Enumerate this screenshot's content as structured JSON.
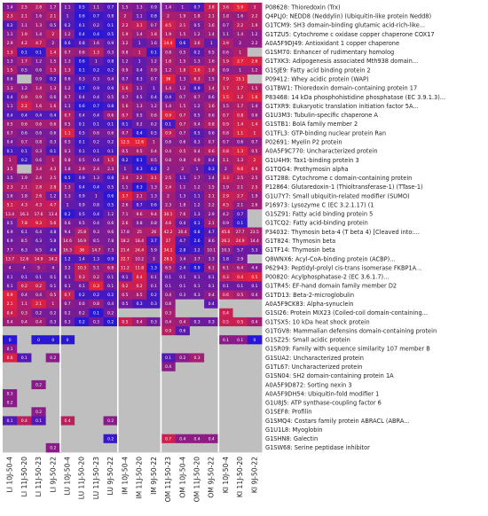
{
  "chart_data": {
    "type": "heatmap",
    "title": "",
    "xlabel": "",
    "ylabel": "",
    "missing_color": "#bfbfbf",
    "low_color": "#2a17d6",
    "mid_color": "#8a1c8a",
    "high_color": "#e6213a",
    "columns": [
      "LI 10J-50-4",
      "LI 11J-50-20",
      "LI 11J-50-23",
      "LI 9J-50-22",
      "LU 10J-50-4",
      "LU 11J-50-20",
      "LU 11J-50-23",
      "LU 9J-50-22",
      "IM 10J-50-4",
      "IM 11J-50-20",
      "IM 9J-50-22",
      "OM 11J-50-23",
      "OM 10J-50-4",
      "OM 11J-50-20",
      "OM 9J-50-22",
      "KI 10J-50-4",
      "KI 11J-50-20",
      "KI 9J-50-22"
    ],
    "rows": [
      {
        "label": "P08628: Thioredoxin (Trx)",
        "values": [
          1.4,
          2.5,
          2.8,
          1.7,
          1.1,
          0.5,
          1.1,
          0.7,
          1.5,
          1.3,
          0.9,
          1.4,
          1.0,
          0.7,
          3.8,
          3.6,
          5.9,
          3.0
        ]
      },
      {
        "label": "Q4PLJ0: NEDD8 (Neddylin) (Ubiquitin-like protein Nedd8)",
        "values": [
          2.3,
          2.1,
          1.6,
          2.1,
          1.0,
          0.6,
          0.7,
          0.8,
          2.0,
          1.1,
          0.8,
          2.0,
          1.9,
          1.8,
          2.1,
          1.8,
          1.6,
          2.2
        ]
      },
      {
        "label": "G1TCM9: SH3 domain-binding glutamic acid-rich-like...",
        "values": [
          0.2,
          1.1,
          1.3,
          0.5,
          0.2,
          0.1,
          0.2,
          0.1,
          2.2,
          3.1,
          0.7,
          4.5,
          2.1,
          0.5,
          1.6,
          0.7,
          2.2,
          1.9
        ]
      },
      {
        "label": "G1TZU5: Cytochrome c oxidase copper chaperone COX17",
        "values": [
          1.1,
          1.9,
          1.4,
          2.0,
          1.2,
          0.4,
          0.4,
          0.5,
          1.9,
          1.4,
          1.8,
          1.9,
          1.5,
          1.2,
          1.4,
          1.1,
          1.4,
          1.2
        ]
      },
      {
        "label": "A0A5F9DJ49: Antioxidant 1 copper chaperone",
        "values": [
          2.9,
          4.2,
          4.7,
          2.0,
          0.6,
          0.8,
          1.6,
          0.9,
          3.2,
          1.0,
          1.6,
          14.4,
          0.6,
          3.6,
          1.0,
          3.9,
          2.0,
          2.2
        ]
      },
      {
        "label": "G1SM70: Enhancer of rudimentary homolog",
        "values": [
          1.3,
          0.1,
          0.1,
          1.4,
          0.7,
          0.6,
          1.3,
          0.3,
          0.8,
          1.0,
          0.1,
          0.8,
          0.5,
          0.2,
          0.5,
          0.6,
          1.0,
          null
        ]
      },
      {
        "label": "G1TXK3: Adipogenesis associated Mth938 domain...",
        "values": [
          1.3,
          1.7,
          1.2,
          1.5,
          1.3,
          0.6,
          1.0,
          0.8,
          1.2,
          1.0,
          1.2,
          1.8,
          1.5,
          1.3,
          1.6,
          1.9,
          2.7,
          2.6
        ]
      },
      {
        "label": "G1SJE9: Fatty acid binding protein 2",
        "values": [
          1.5,
          0.5,
          0.6,
          1.5,
          1.3,
          0.1,
          0.2,
          0.2,
          0.9,
          0.4,
          0.9,
          1.2,
          1.8,
          3.6,
          1.8,
          0.9,
          1.0,
          1.2
        ]
      },
      {
        "label": "P09412: Whey acidic protein (WAP)",
        "values": [
          0.6,
          null,
          0.9,
          0.2,
          0.6,
          0.3,
          0.3,
          0.4,
          0.7,
          0.3,
          0.7,
          36.0,
          1.3,
          6.3,
          1.5,
          7.9,
          15.1,
          null
        ]
      },
      {
        "label": "G1TBW1: Thioredoxin domain-containing protein 17",
        "values": [
          1.3,
          1.2,
          1.4,
          1.3,
          1.2,
          0.7,
          0.9,
          0.9,
          1.6,
          1.1,
          1.0,
          1.4,
          1.2,
          0.9,
          1.4,
          1.7,
          1.7,
          1.5
        ]
      },
      {
        "label": "P83468: 14 kDa phosphohistidine phosphatase (EC 3.9.1.3)...",
        "values": [
          0.4,
          0.9,
          0.9,
          0.6,
          0.7,
          0.4,
          0.4,
          0.5,
          0.7,
          0.5,
          0.4,
          0.4,
          0.7,
          0.7,
          0.6,
          1.5,
          1.2,
          1.6
        ]
      },
      {
        "label": "G1TXR9: Eukaryotic translation initiation factor 5A...",
        "values": [
          1.1,
          2.2,
          1.6,
          1.6,
          1.1,
          0.6,
          0.7,
          0.8,
          1.6,
          1.3,
          1.2,
          1.4,
          1.5,
          1.2,
          1.6,
          1.5,
          1.7,
          1.4
        ]
      },
      {
        "label": "G1U3M3: Tubulin-specific chaperone A",
        "values": [
          0.4,
          0.4,
          0.4,
          0.4,
          0.7,
          0.4,
          0.4,
          0.6,
          0.7,
          0.5,
          0.6,
          0.9,
          0.7,
          0.5,
          0.6,
          0.7,
          0.8,
          0.6
        ]
      },
      {
        "label": "G1STB1: BolA family member 2",
        "values": [
          0.5,
          0.6,
          0.6,
          0.6,
          0.5,
          0.1,
          0.1,
          0.1,
          0.1,
          0.2,
          0.2,
          0.1,
          0.7,
          0.4,
          0.8,
          0.9,
          1.4,
          1.4
        ]
      },
      {
        "label": "G1TFL3: GTP-binding nuclear protein Ran",
        "values": [
          0.7,
          0.6,
          0.6,
          0.6,
          1.1,
          0.5,
          0.6,
          0.6,
          0.7,
          0.4,
          0.5,
          0.9,
          0.7,
          0.5,
          0.6,
          0.8,
          1.1,
          1.0
        ]
      },
      {
        "label": "P02691: Myelin P2 protein",
        "values": [
          0.4,
          0.7,
          0.8,
          0.3,
          0.5,
          0.1,
          0.2,
          0.2,
          12.5,
          12.6,
          1.0,
          0.6,
          0.6,
          0.3,
          0.7,
          0.7,
          0.6,
          0.7
        ]
      },
      {
        "label": "A0A5F9C770: Uncharacterized protein",
        "values": [
          0.1,
          0.1,
          0.3,
          0.1,
          0.3,
          0.1,
          0.1,
          0.1,
          0.5,
          0.5,
          0.4,
          0.4,
          0.5,
          0.4,
          0.6,
          0.8,
          1.3,
          0.5
        ]
      },
      {
        "label": "G1U4H9: Tax1-binding protein 3",
        "values": [
          1.0,
          0.2,
          0.6,
          1.0,
          0.8,
          0.5,
          0.4,
          1.5,
          0.2,
          0.1,
          0.5,
          0.8,
          0.8,
          0.9,
          0.4,
          1.1,
          1.3,
          2.0
        ]
      },
      {
        "label": "G1TQG4: Prothymosin alpha",
        "values": [
          3.5,
          null,
          3.4,
          4.3,
          1.8,
          2.9,
          2.4,
          2.3,
          1.0,
          0.3,
          0.2,
          2.0,
          2.0,
          1.0,
          0.3,
          2.0,
          9.6,
          6.9
        ]
      },
      {
        "label": "G1T288: Cytochrome c domain-containing protein",
        "values": [
          1.5,
          1.9,
          2.4,
          2.5,
          0.5,
          0.9,
          1.3,
          0.8,
          2.4,
          2.2,
          3.1,
          2.5,
          1.1,
          1.7,
          1.4,
          3.3,
          2.5,
          2.5
        ]
      },
      {
        "label": "P12864: Glutaredoxin-1 (Thioltransferase-1) (TTase-1)",
        "values": [
          2.3,
          2.1,
          2.8,
          2.8,
          1.3,
          0.4,
          0.4,
          0.5,
          1.1,
          0.3,
          1.3,
          2.4,
          1.1,
          1.2,
          1.5,
          1.9,
          2.1,
          2.5
        ]
      },
      {
        "label": "G1U7Y7: Small ubiquitin-related modifier (SUMO)",
        "values": [
          1.6,
          1.8,
          2.6,
          1.2,
          1.3,
          0.9,
          1.0,
          0.6,
          3.7,
          2.1,
          1.3,
          2.0,
          1.3,
          1.1,
          2.1,
          2.9,
          2.7,
          1.9
        ]
      },
      {
        "label": "P16973: Lysozyme C (EC 3.2.1.17) (1",
        "values": [
          5.1,
          4.3,
          4.3,
          4.7,
          1.0,
          0.9,
          0.8,
          0.5,
          2.6,
          0.7,
          0.6,
          2.3,
          1.8,
          1.2,
          2.2,
          4.5,
          2.1,
          2.6
        ]
      },
      {
        "label": "G1SZ91: Fatty acid binding protein 5",
        "values": [
          13.4,
          16.3,
          17.6,
          13.4,
          0.2,
          0.5,
          0.4,
          1.2,
          7.1,
          9.6,
          9.4,
          30.1,
          7.6,
          1.3,
          2.9,
          4.2,
          0.7,
          null
        ]
      },
      {
        "label": "G1TCQ2: Fatty acid-binding protein",
        "values": [
          0.5,
          7.8,
          9.3,
          5.6,
          0.6,
          0.5,
          0.4,
          0.6,
          2.6,
          0.8,
          0.8,
          4.6,
          0.4,
          0.1,
          2.1,
          0.9,
          0.1,
          null
        ]
      },
      {
        "label": "P34032: Thymosin beta-4 (T beta 4) [Cleaved into:...",
        "values": [
          6.9,
          6.1,
          6.4,
          4.8,
          9.4,
          25.8,
          9.3,
          9.6,
          17.8,
          25.0,
          26.0,
          42.2,
          20.4,
          0.8,
          4.7,
          45.6,
          27.7,
          23.5
        ]
      },
      {
        "label": "G1T824: Thymosin beta",
        "values": [
          6.9,
          8.5,
          6.3,
          5.8,
          14.6,
          16.9,
          8.5,
          7.8,
          18.2,
          18.4,
          3.7,
          27.0,
          4.7,
          2.6,
          8.6,
          26.2,
          24.9,
          14.4
        ]
      },
      {
        "label": "G1TF14: Thymosin beta",
        "values": [
          7.7,
          6.3,
          6.5,
          4.6,
          16.3,
          36.0,
          14.7,
          7.3,
          21.4,
          24.4,
          5.9,
          34.1,
          2.8,
          3.2,
          10.1,
          10.3,
          5.7,
          5.3
        ]
      },
      {
        "label": "Q8WNX6: Acyl-CoA-binding protein (ACBP)...",
        "values": [
          13.7,
          12.6,
          14.9,
          14.2,
          1.2,
          1.4,
          1.3,
          0.9,
          22.7,
          10.2,
          3.0,
          28.5,
          3.4,
          3.7,
          3.3,
          1.8,
          2.9,
          null
        ]
      },
      {
        "label": "P62943: Peptidyl-prolyl cis-trans isomerase FKBP1A...",
        "values": [
          4.0,
          4.0,
          5.0,
          4.0,
          3.2,
          10.3,
          5.1,
          6.8,
          11.2,
          11.8,
          1.3,
          6.5,
          2.4,
          0.9,
          6.1,
          6.1,
          6.4,
          4.4
        ]
      },
      {
        "label": "P00820: Acylphosphatase-2 (EC 3.6.1.7)...",
        "values": [
          0.1,
          0.1,
          0.1,
          0.1,
          0.1,
          0.3,
          0.2,
          0.1,
          0.1,
          0.4,
          0.1,
          0.1,
          0.1,
          0.1,
          0.1,
          0.3,
          0.4,
          0.5
        ]
      },
      {
        "label": "G1TR45: EF-hand domain family member D2",
        "values": [
          0.1,
          0.2,
          0.2,
          0.1,
          0.1,
          0.1,
          0.3,
          0.1,
          0.2,
          0.2,
          0.1,
          0.1,
          0.1,
          0.1,
          0.1,
          0.1,
          0.1,
          0.1
        ]
      },
      {
        "label": "G1TD13: Beta-2-microglobulin",
        "values": [
          0.9,
          0.4,
          0.4,
          0.5,
          0.7,
          0.2,
          0.2,
          0.2,
          0.5,
          0.5,
          0.2,
          0.4,
          0.3,
          0.3,
          0.4,
          0.6,
          0.5,
          0.4
        ]
      },
      {
        "label": "A0A5F9CK83: Alpha-synuclein",
        "values": [
          2.1,
          1.1,
          2.1,
          1.0,
          0.7,
          0.6,
          0.8,
          0.4,
          0.5,
          0.3,
          0.3,
          0.8,
          null,
          null,
          0.4,
          null,
          null,
          null
        ]
      },
      {
        "label": "G1SI26: Protein MIX23 (Coiled-coil domain-containing...",
        "values": [
          0.4,
          0.3,
          0.2,
          0.2,
          0.2,
          0.2,
          0.1,
          0.2,
          null,
          null,
          null,
          0.3,
          null,
          null,
          null,
          0.4,
          null,
          null
        ]
      },
      {
        "label": "G1TSX5: 10 kDa heat shock protein",
        "values": [
          0.4,
          0.4,
          0.4,
          0.3,
          0.3,
          0.2,
          0.3,
          0.2,
          0.5,
          0.4,
          0.3,
          0.4,
          0.4,
          0.3,
          0.3,
          0.5,
          0.5,
          0.4
        ]
      },
      {
        "label": "G1TGV8: Mammalian defensins domain-containing protein",
        "values": [
          null,
          null,
          null,
          null,
          null,
          null,
          null,
          null,
          null,
          null,
          null,
          0.9,
          0.6,
          null,
          null,
          null,
          null,
          null
        ]
      },
      {
        "label": "G1SZ25: Small acidic protein",
        "values": [
          0.0,
          null,
          0.0,
          0.0,
          0.0,
          null,
          null,
          null,
          null,
          null,
          null,
          null,
          null,
          null,
          null,
          0.1,
          0.1,
          0.0
        ]
      },
      {
        "label": "G1SR09: Family with sequence similarity 107 member B",
        "values": [
          0.1,
          null,
          null,
          null,
          null,
          null,
          null,
          null,
          null,
          null,
          null,
          null,
          null,
          null,
          null,
          null,
          null,
          null
        ]
      },
      {
        "label": "G1SUA2: Uncharacterized protein",
        "values": [
          0.6,
          0.1,
          null,
          0.2,
          null,
          null,
          null,
          null,
          null,
          null,
          null,
          0.1,
          0.2,
          0.3,
          null,
          null,
          null,
          null
        ]
      },
      {
        "label": "G1TL67: Uncharacterized protein",
        "values": [
          null,
          null,
          null,
          null,
          null,
          null,
          null,
          null,
          null,
          null,
          null,
          0.4,
          null,
          null,
          null,
          null,
          null,
          null
        ]
      },
      {
        "label": "G1SN04: SH2 domain-containing protein 1A",
        "values": [
          null,
          null,
          null,
          null,
          null,
          null,
          null,
          null,
          null,
          null,
          null,
          null,
          null,
          null,
          null,
          null,
          null,
          null
        ]
      },
      {
        "label": "A0A5F9D872: Sorting nexin 3",
        "values": [
          null,
          null,
          0.2,
          null,
          null,
          null,
          null,
          null,
          null,
          null,
          null,
          null,
          null,
          null,
          null,
          null,
          null,
          null
        ]
      },
      {
        "label": "A0A5F9DH54: Ubiquitin-fold modifier 1",
        "values": [
          0.3,
          null,
          null,
          null,
          null,
          null,
          null,
          null,
          null,
          null,
          null,
          null,
          null,
          null,
          null,
          null,
          null,
          null
        ]
      },
      {
        "label": "G1U8J5: ATP synthase-coupling factor 6",
        "values": [
          0.2,
          null,
          null,
          null,
          null,
          null,
          null,
          null,
          null,
          null,
          null,
          null,
          null,
          null,
          null,
          null,
          null,
          null
        ]
      },
      {
        "label": "G1SEF8: Profilin",
        "values": [
          null,
          null,
          0.2,
          null,
          null,
          null,
          null,
          null,
          null,
          null,
          null,
          null,
          null,
          null,
          null,
          null,
          null,
          null
        ]
      },
      {
        "label": "G1SMQ4: Costars family protein ABRACL (ABRA...",
        "values": [
          0.1,
          0.4,
          0.1,
          null,
          0.4,
          null,
          null,
          0.2,
          null,
          null,
          null,
          null,
          null,
          null,
          null,
          null,
          null,
          null
        ]
      },
      {
        "label": "G1U1L8: Myoglobin",
        "values": [
          null,
          null,
          null,
          null,
          null,
          null,
          null,
          null,
          null,
          null,
          null,
          null,
          null,
          null,
          null,
          null,
          null,
          null
        ]
      },
      {
        "label": "G1SHN8: Galectin",
        "values": [
          null,
          null,
          null,
          null,
          null,
          null,
          null,
          0.2,
          null,
          null,
          null,
          0.7,
          0.4,
          0.4,
          0.4,
          null,
          null,
          null
        ]
      },
      {
        "label": "G1SW68: Serine peptidase inhibitor",
        "values": [
          null,
          null,
          null,
          0.2,
          null,
          null,
          null,
          null,
          null,
          null,
          null,
          null,
          null,
          null,
          null,
          null,
          null,
          null
        ]
      }
    ]
  }
}
